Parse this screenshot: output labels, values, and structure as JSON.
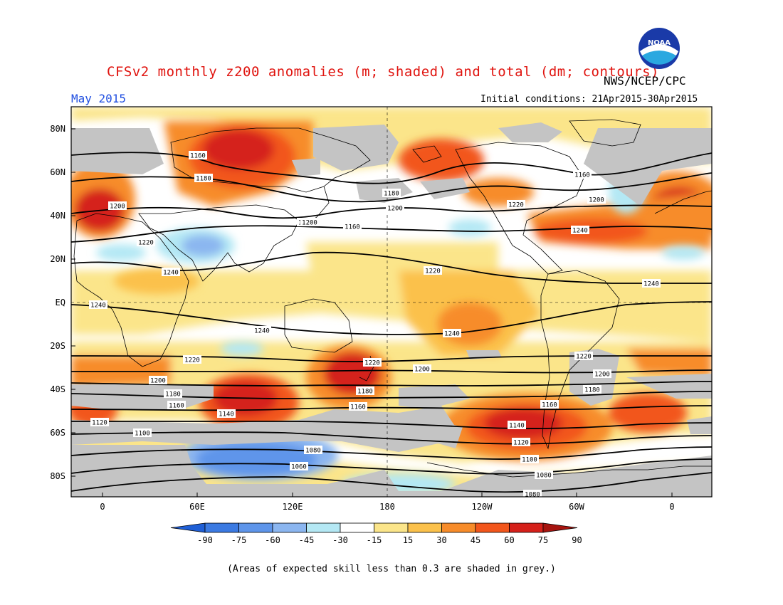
{
  "header": {
    "title": "CFSv2 monthly z200 anomalies (m; shaded) and total (dm; contours)",
    "agency": "NWS/NCEP/CPC",
    "month": "May 2015",
    "initial_conditions": "Initial conditions: 21Apr2015-30Apr2015"
  },
  "logo": {
    "icon": "noaa-logo",
    "text": "NOAA"
  },
  "footer": {
    "note": "(Areas of expected skill less than 0.3 are shaded in grey.)"
  },
  "colors": {
    "grey": "#c4c4c4",
    "colorbar": [
      "#1f5fd6",
      "#3b7ae2",
      "#5e95ea",
      "#8bb6f0",
      "#b4e8f4",
      "#ffffff",
      "#fbe58a",
      "#fbc14b",
      "#f78c2a",
      "#f2561c",
      "#d5201a",
      "#a6140f"
    ]
  },
  "chart_data": {
    "type": "heatmap",
    "title": "CFSv2 monthly z200 anomalies (m; shaded) and total (dm; contours)",
    "x_ticks": [
      "0",
      "60E",
      "120E",
      "180",
      "120W",
      "60W",
      "0"
    ],
    "y_ticks": [
      "80N",
      "60N",
      "40N",
      "20N",
      "EQ",
      "20S",
      "40S",
      "60S",
      "80S"
    ],
    "colorbar": {
      "labels": [
        "-90",
        "-75",
        "-60",
        "-45",
        "-30",
        "-15",
        "15",
        "30",
        "45",
        "60",
        "75",
        "90"
      ]
    },
    "contour_labels": [
      "1160",
      "1180",
      "1200",
      "1220",
      "1240",
      "1240",
      "1180",
      "1160",
      "1180",
      "1200",
      "1220",
      "1240",
      "1160",
      "1200",
      "1220",
      "1240",
      "1220",
      "1200",
      "1240",
      "1220",
      "1200",
      "1180",
      "1160",
      "1140",
      "1120",
      "1100",
      "1180",
      "1160",
      "1220",
      "1200",
      "1180",
      "1160",
      "1140",
      "1120",
      "1100",
      "1080",
      "1080",
      "1080",
      "1060",
      "1240",
      "1200"
    ]
  }
}
